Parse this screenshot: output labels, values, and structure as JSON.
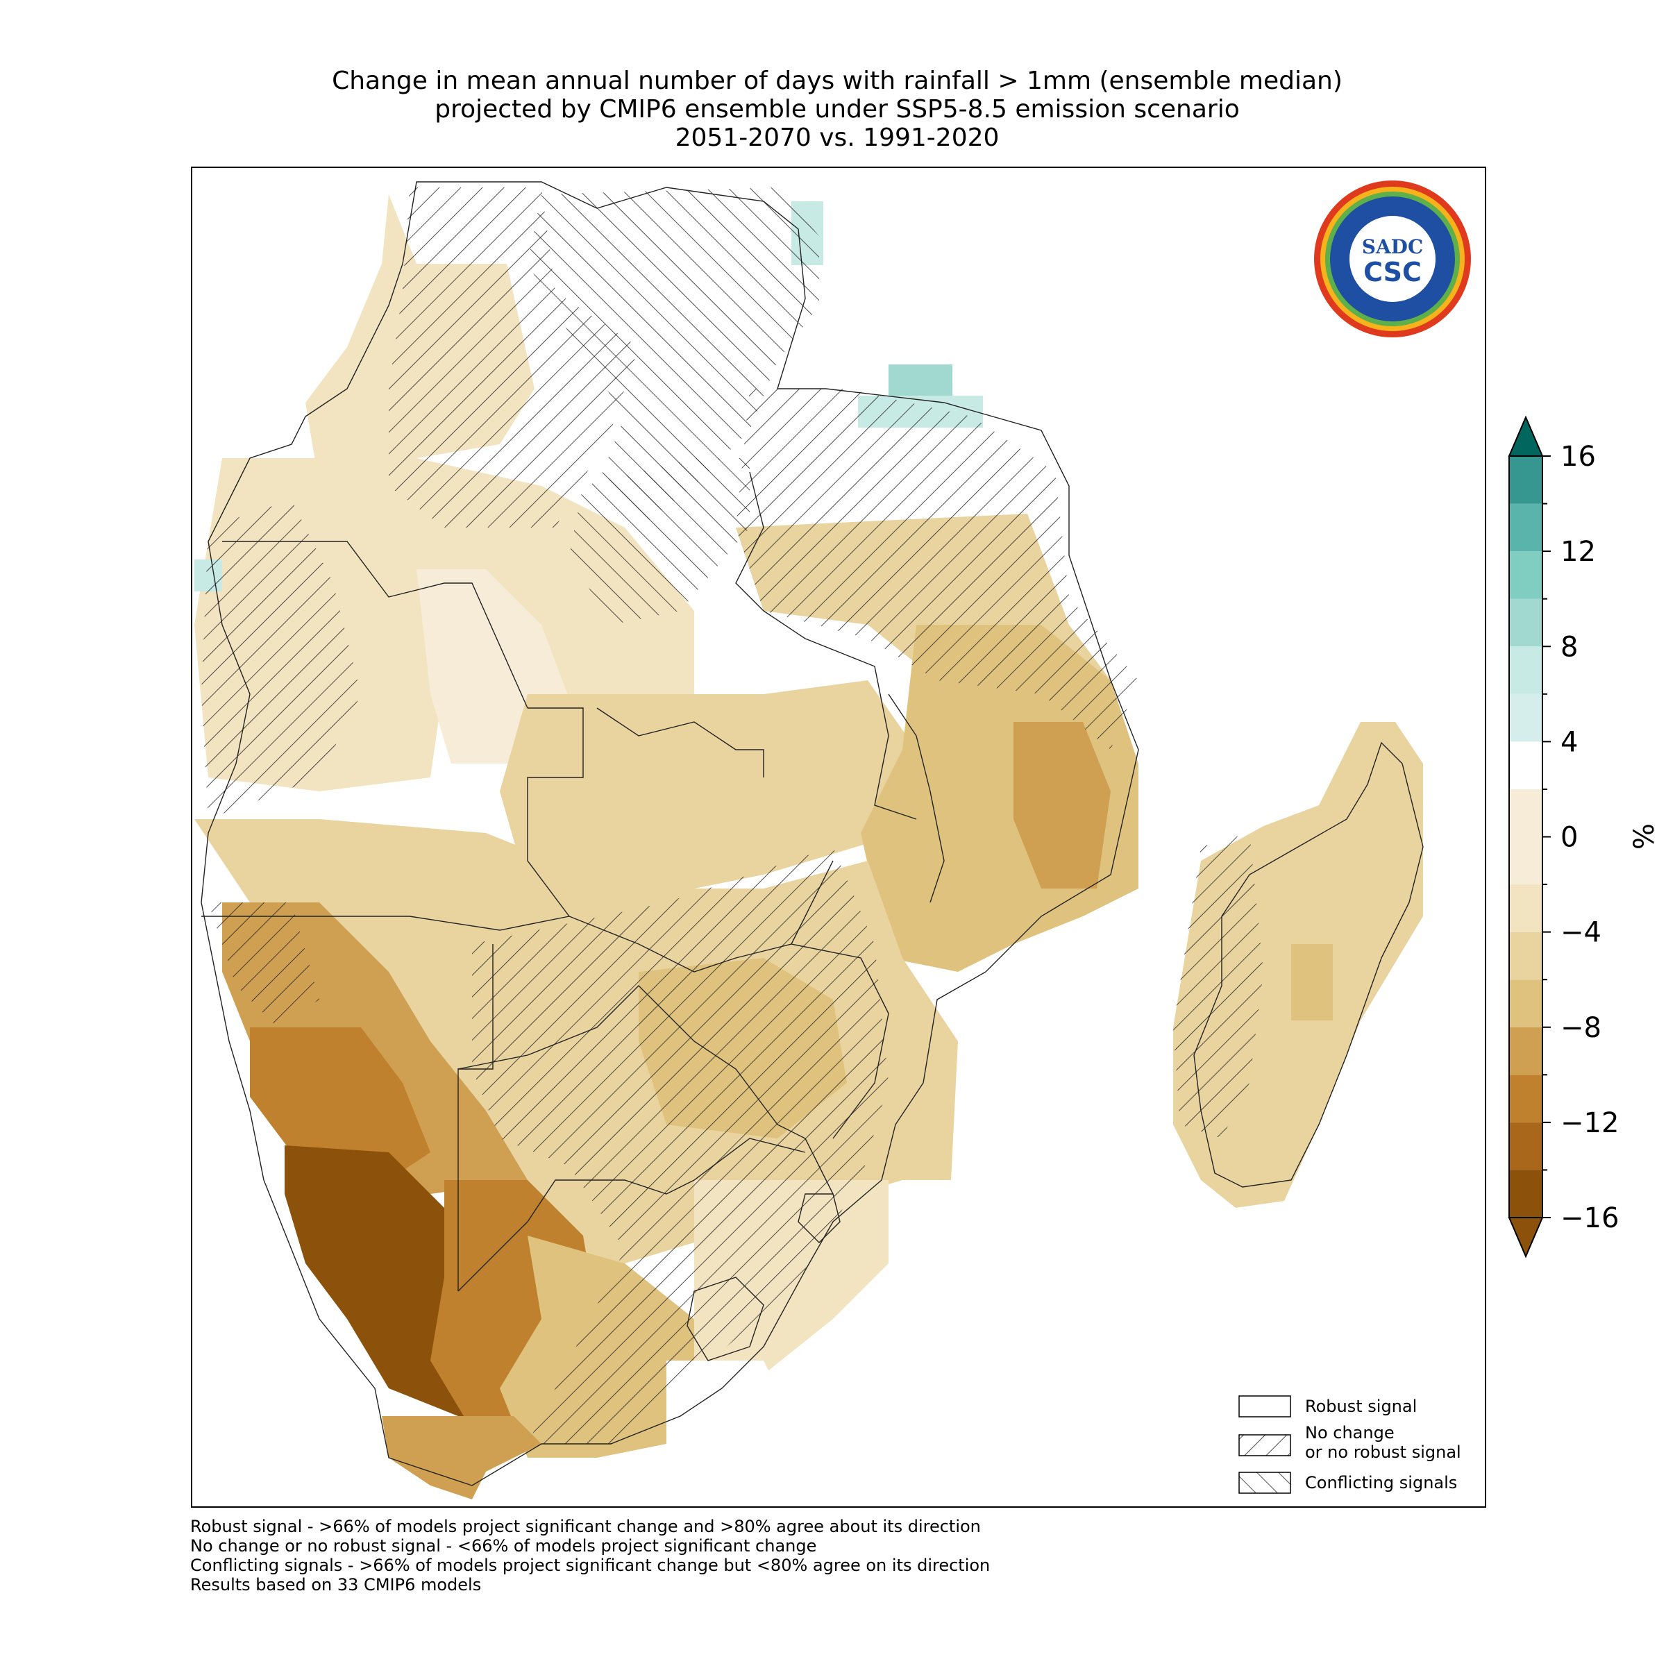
{
  "title": {
    "line1": "Change in mean annual number of days with rainfall > 1mm (ensemble median)",
    "line2": "projected by CMIP6 ensemble under SSP5-8.5 emission scenario",
    "line3": "2051-2070 vs. 1991-2020"
  },
  "colorbar": {
    "unit": "%",
    "min": -16,
    "max": 16,
    "step": 2,
    "tick_labels": [
      "16",
      "12",
      "8",
      "4",
      "0",
      "−4",
      "−8",
      "−12",
      "−16"
    ],
    "colors": [
      "#8c510a",
      "#a8671a",
      "#bf812d",
      "#cfa052",
      "#dfc27d",
      "#e9d4a0",
      "#f2e4c0",
      "#f6ecd7",
      "#ffffff",
      "#d6eeeb",
      "#c7eae5",
      "#a1d8cf",
      "#80cdc1",
      "#5ab4ac",
      "#35978f",
      "#1c7e76",
      "#01665e"
    ]
  },
  "legend": {
    "robust": "Robust signal",
    "no_change_1": "No change",
    "no_change_2": "or no robust signal",
    "conflicting": "Conflicting signals"
  },
  "footnotes": {
    "line1": "Robust signal - >66% of models project significant change and >80% agree about its direction",
    "line2": "No change or no robust signal - <66% of models project significant change",
    "line3": "Conflicting signals - >66% of models project significant change but <80% agree on its direction",
    "line4": "Results based on 33 CMIP6 models"
  },
  "logo": {
    "text_main": "CSC",
    "text_top": "SADC"
  }
}
